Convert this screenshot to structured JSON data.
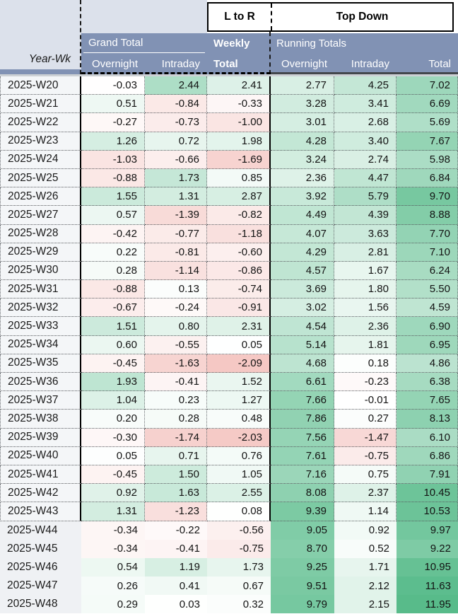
{
  "banner": {
    "ltor": "L to R",
    "topdown": "Top Down"
  },
  "header": {
    "year_wk": "Year-Wk",
    "grand_group": "Grand Total",
    "weekly_line1": "Weekly",
    "weekly_line2": "Total",
    "running_group": "Running Totals",
    "grand_cols": [
      "Overnight",
      "Intraday"
    ],
    "running_cols": [
      "Overnight",
      "Intraday",
      "Total"
    ]
  },
  "colors": {
    "header_slate": "#8192b4",
    "header_light_blue": "#dce1eb",
    "heat_positive_green": "#57bb8a",
    "heat_negative_red": "#e67c73",
    "label_column_bg": "#f3f5f7"
  },
  "heat_scale": {
    "negative_full_at": -5,
    "grand_positive_full_at": 5,
    "totals_positive_full_at": 12
  },
  "table": {
    "columns": [
      "week",
      "overnight",
      "intraday",
      "weekly_total",
      "run_overnight",
      "run_intraday",
      "run_total"
    ],
    "rows": [
      {
        "week": "2025-W20",
        "overnight": -0.03,
        "intraday": 2.44,
        "weekly_total": 2.41,
        "run_overnight": 2.77,
        "run_intraday": 4.25,
        "run_total": 7.02,
        "dashed": true
      },
      {
        "week": "2025-W21",
        "overnight": 0.51,
        "intraday": -0.84,
        "weekly_total": -0.33,
        "run_overnight": 3.28,
        "run_intraday": 3.41,
        "run_total": 6.69,
        "dashed": true
      },
      {
        "week": "2025-W22",
        "overnight": -0.27,
        "intraday": -0.73,
        "weekly_total": -1.0,
        "run_overnight": 3.01,
        "run_intraday": 2.68,
        "run_total": 5.69,
        "dashed": true
      },
      {
        "week": "2025-W23",
        "overnight": 1.26,
        "intraday": 0.72,
        "weekly_total": 1.98,
        "run_overnight": 4.28,
        "run_intraday": 3.4,
        "run_total": 7.67,
        "dashed": true
      },
      {
        "week": "2025-W24",
        "overnight": -1.03,
        "intraday": -0.66,
        "weekly_total": -1.69,
        "run_overnight": 3.24,
        "run_intraday": 2.74,
        "run_total": 5.98,
        "dashed": true
      },
      {
        "week": "2025-W25",
        "overnight": -0.88,
        "intraday": 1.73,
        "weekly_total": 0.85,
        "run_overnight": 2.36,
        "run_intraday": 4.47,
        "run_total": 6.84,
        "dashed": true
      },
      {
        "week": "2025-W26",
        "overnight": 1.55,
        "intraday": 1.31,
        "weekly_total": 2.87,
        "run_overnight": 3.92,
        "run_intraday": 5.79,
        "run_total": 9.7,
        "dashed": true
      },
      {
        "week": "2025-W27",
        "overnight": 0.57,
        "intraday": -1.39,
        "weekly_total": -0.82,
        "run_overnight": 4.49,
        "run_intraday": 4.39,
        "run_total": 8.88,
        "dashed": true
      },
      {
        "week": "2025-W28",
        "overnight": -0.42,
        "intraday": -0.77,
        "weekly_total": -1.18,
        "run_overnight": 4.07,
        "run_intraday": 3.63,
        "run_total": 7.7,
        "dashed": true
      },
      {
        "week": "2025-W29",
        "overnight": 0.22,
        "intraday": -0.81,
        "weekly_total": -0.6,
        "run_overnight": 4.29,
        "run_intraday": 2.81,
        "run_total": 7.1,
        "dashed": true
      },
      {
        "week": "2025-W30",
        "overnight": 0.28,
        "intraday": -1.14,
        "weekly_total": -0.86,
        "run_overnight": 4.57,
        "run_intraday": 1.67,
        "run_total": 6.24,
        "dashed": true
      },
      {
        "week": "2025-W31",
        "overnight": -0.88,
        "intraday": 0.13,
        "weekly_total": -0.74,
        "run_overnight": 3.69,
        "run_intraday": 1.8,
        "run_total": 5.5,
        "dashed": true
      },
      {
        "week": "2025-W32",
        "overnight": -0.67,
        "intraday": -0.24,
        "weekly_total": -0.91,
        "run_overnight": 3.02,
        "run_intraday": 1.56,
        "run_total": 4.59,
        "dashed": true
      },
      {
        "week": "2025-W33",
        "overnight": 1.51,
        "intraday": 0.8,
        "weekly_total": 2.31,
        "run_overnight": 4.54,
        "run_intraday": 2.36,
        "run_total": 6.9,
        "dashed": true
      },
      {
        "week": "2025-W34",
        "overnight": 0.6,
        "intraday": -0.55,
        "weekly_total": 0.05,
        "run_overnight": 5.14,
        "run_intraday": 1.81,
        "run_total": 6.95,
        "dashed": true
      },
      {
        "week": "2025-W35",
        "overnight": -0.45,
        "intraday": -1.63,
        "weekly_total": -2.09,
        "run_overnight": 4.68,
        "run_intraday": 0.18,
        "run_total": 4.86,
        "dashed": true
      },
      {
        "week": "2025-W36",
        "overnight": 1.93,
        "intraday": -0.41,
        "weekly_total": 1.52,
        "run_overnight": 6.61,
        "run_intraday": -0.23,
        "run_total": 6.38,
        "dashed": true
      },
      {
        "week": "2025-W37",
        "overnight": 1.04,
        "intraday": 0.23,
        "weekly_total": 1.27,
        "run_overnight": 7.66,
        "run_intraday": -0.01,
        "run_total": 7.65,
        "dashed": true
      },
      {
        "week": "2025-W38",
        "overnight": 0.2,
        "intraday": 0.28,
        "weekly_total": 0.48,
        "run_overnight": 7.86,
        "run_intraday": 0.27,
        "run_total": 8.13,
        "dashed": true
      },
      {
        "week": "2025-W39",
        "overnight": -0.3,
        "intraday": -1.74,
        "weekly_total": -2.03,
        "run_overnight": 7.56,
        "run_intraday": -1.47,
        "run_total": 6.1,
        "dashed": true
      },
      {
        "week": "2025-W40",
        "overnight": 0.05,
        "intraday": 0.71,
        "weekly_total": 0.76,
        "run_overnight": 7.61,
        "run_intraday": -0.75,
        "run_total": 6.86,
        "dashed": true
      },
      {
        "week": "2025-W41",
        "overnight": -0.45,
        "intraday": 1.5,
        "weekly_total": 1.05,
        "run_overnight": 7.16,
        "run_intraday": 0.75,
        "run_total": 7.91,
        "dashed": true
      },
      {
        "week": "2025-W42",
        "overnight": 0.92,
        "intraday": 1.63,
        "weekly_total": 2.55,
        "run_overnight": 8.08,
        "run_intraday": 2.37,
        "run_total": 10.45,
        "dashed": true
      },
      {
        "week": "2025-W43",
        "overnight": 1.31,
        "intraday": -1.23,
        "weekly_total": 0.08,
        "run_overnight": 9.39,
        "run_intraday": 1.14,
        "run_total": 10.53,
        "dashed": true
      },
      {
        "week": "2025-W44",
        "overnight": -0.34,
        "intraday": -0.22,
        "weekly_total": -0.56,
        "run_overnight": 9.05,
        "run_intraday": 0.92,
        "run_total": 9.97,
        "dashed": false
      },
      {
        "week": "2025-W45",
        "overnight": -0.34,
        "intraday": -0.41,
        "weekly_total": -0.75,
        "run_overnight": 8.7,
        "run_intraday": 0.52,
        "run_total": 9.22,
        "dashed": false
      },
      {
        "week": "2025-W46",
        "overnight": 0.54,
        "intraday": 1.19,
        "weekly_total": 1.73,
        "run_overnight": 9.25,
        "run_intraday": 1.71,
        "run_total": 10.95,
        "dashed": false
      },
      {
        "week": "2025-W47",
        "overnight": 0.26,
        "intraday": 0.41,
        "weekly_total": 0.67,
        "run_overnight": 9.51,
        "run_intraday": 2.12,
        "run_total": 11.63,
        "dashed": false
      },
      {
        "week": "2025-W48",
        "overnight": 0.29,
        "intraday": 0.03,
        "weekly_total": 0.32,
        "run_overnight": 9.79,
        "run_intraday": 2.15,
        "run_total": 11.95,
        "dashed": false
      }
    ]
  }
}
